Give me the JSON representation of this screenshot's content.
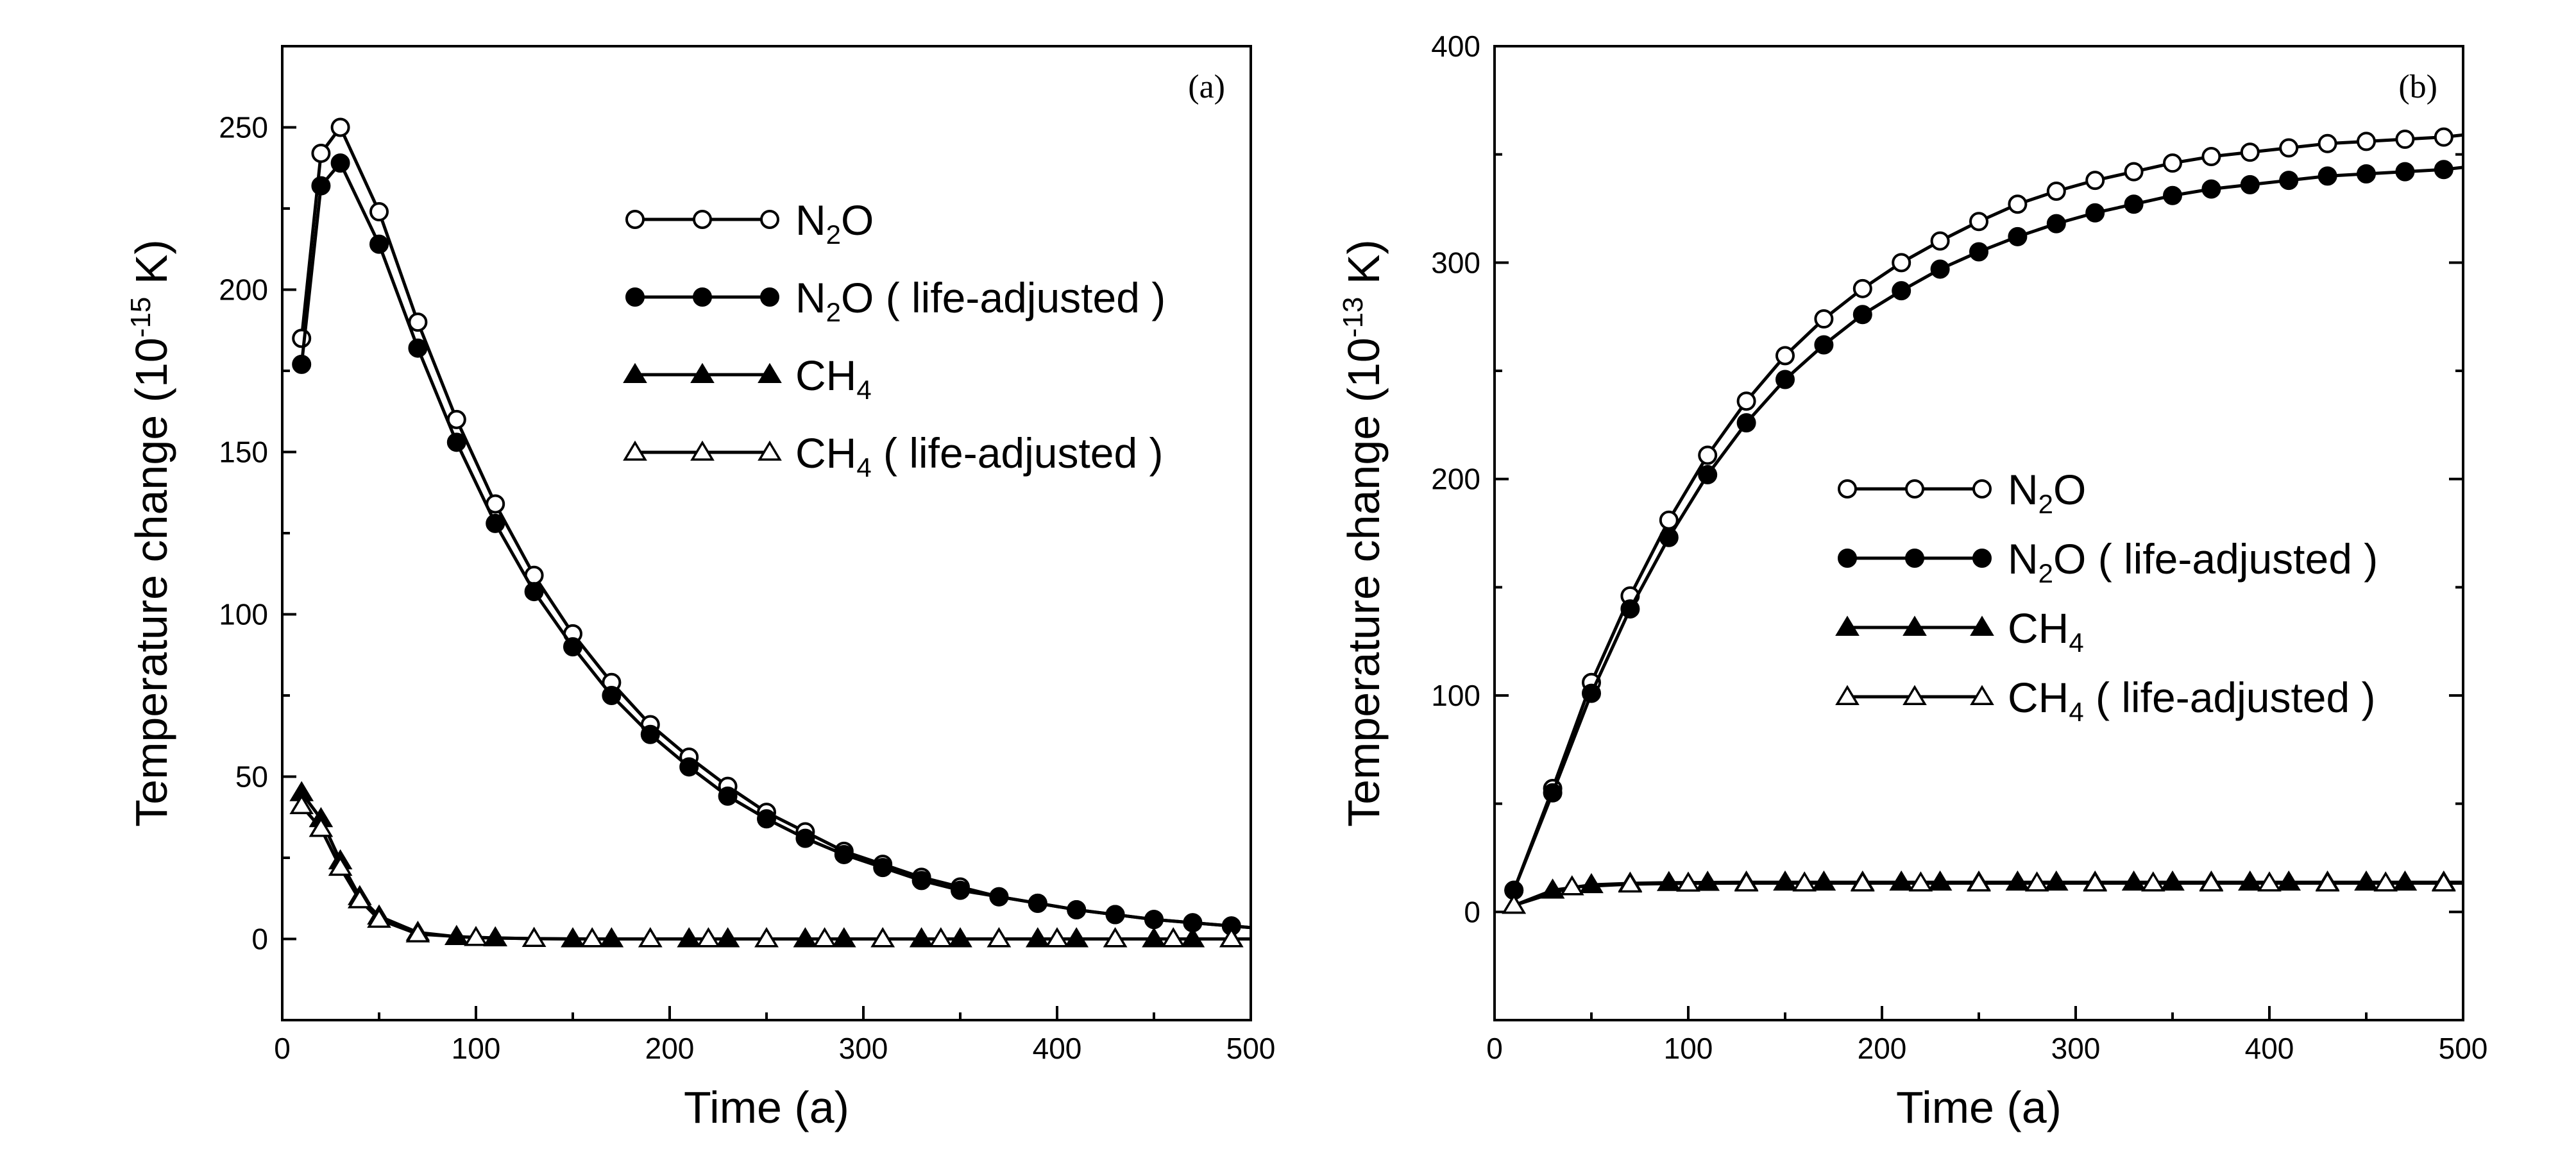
{
  "chart_data": [
    {
      "type": "line",
      "panel_label": "(a)",
      "xlabel": "Time (a)",
      "ylabel": "Temperature change (10",
      "ylabel_exp": "-15",
      "ylabel_unit": " K)",
      "xlim": [
        0,
        500
      ],
      "ylim": [
        -25,
        275
      ],
      "xticks": [
        0,
        100,
        200,
        300,
        400,
        500
      ],
      "yticks": [
        0,
        50,
        100,
        150,
        200,
        250
      ],
      "xticks_minor": [
        50,
        150,
        250,
        350,
        450
      ],
      "yticks_minor": [
        25,
        75,
        125,
        175,
        225
      ],
      "legend_position": "upper-center",
      "grid": false,
      "series": [
        {
          "legend_main": "N",
          "legend_sub": "2",
          "legend_rest": "O",
          "marker": "open-circle",
          "x": [
            10,
            20,
            30,
            50,
            70,
            90,
            110,
            130,
            150,
            170,
            190,
            210,
            230,
            250,
            270,
            290,
            310,
            330,
            350,
            370,
            390,
            410,
            430,
            450,
            470,
            490,
            500
          ],
          "y": [
            185,
            242,
            250,
            224,
            190,
            160,
            134,
            112,
            94,
            79,
            66,
            56,
            47,
            39,
            33,
            27,
            23,
            19,
            16,
            13,
            11,
            9,
            7.5,
            6,
            5,
            4,
            3.5
          ]
        },
        {
          "legend_main": "N",
          "legend_sub": "2",
          "legend_rest": "O ( life-adjusted )",
          "marker": "filled-circle",
          "x": [
            10,
            20,
            30,
            50,
            70,
            90,
            110,
            130,
            150,
            170,
            190,
            210,
            230,
            250,
            270,
            290,
            310,
            330,
            350,
            370,
            390,
            410,
            430,
            450,
            470,
            490,
            500
          ],
          "y": [
            177,
            232,
            239,
            214,
            182,
            153,
            128,
            107,
            90,
            75,
            63,
            53,
            44,
            37,
            31,
            26,
            22,
            18,
            15,
            13,
            11,
            9,
            7.5,
            6,
            5,
            4,
            3.5
          ]
        },
        {
          "legend_main": "CH",
          "legend_sub": "4",
          "legend_rest": "",
          "marker": "filled-triangle",
          "x": [
            10,
            20,
            30,
            40,
            50,
            70,
            90,
            110,
            130,
            150,
            170,
            190,
            210,
            230,
            250,
            270,
            290,
            310,
            330,
            350,
            370,
            390,
            410,
            430,
            450,
            470,
            490,
            500
          ],
          "y": [
            45,
            37,
            24,
            13,
            7,
            2,
            0.7,
            0.3,
            0.1,
            0,
            0,
            0,
            0,
            0,
            0,
            0,
            0,
            0,
            0,
            0,
            0,
            0,
            0,
            0,
            0,
            0,
            0,
            0
          ]
        },
        {
          "legend_main": "CH",
          "legend_sub": "4",
          "legend_rest": " ( life-adjusted )",
          "marker": "open-triangle",
          "x": [
            10,
            20,
            30,
            40,
            50,
            70,
            100,
            130,
            160,
            190,
            220,
            250,
            280,
            310,
            340,
            370,
            400,
            430,
            460,
            490,
            500
          ],
          "y": [
            41,
            34,
            22,
            12,
            6,
            1.5,
            0.4,
            0.1,
            0,
            0,
            0,
            0,
            0,
            0,
            0,
            0,
            0,
            0,
            0,
            0,
            0
          ]
        }
      ]
    },
    {
      "type": "line",
      "panel_label": "(b)",
      "xlabel": "Time (a)",
      "ylabel": "Temperature change (10",
      "ylabel_exp": "-13",
      "ylabel_unit": " K)",
      "xlim": [
        0,
        500
      ],
      "ylim": [
        -50,
        400
      ],
      "xticks": [
        0,
        100,
        200,
        300,
        400,
        500
      ],
      "yticks": [
        0,
        100,
        200,
        300,
        400
      ],
      "xticks_minor": [
        50,
        150,
        250,
        350,
        450
      ],
      "yticks_minor": [
        50,
        150,
        250,
        350
      ],
      "legend_position": "center",
      "grid": false,
      "series": [
        {
          "legend_main": "N",
          "legend_sub": "2",
          "legend_rest": "O",
          "marker": "open-circle",
          "x": [
            10,
            30,
            50,
            70,
            90,
            110,
            130,
            150,
            170,
            190,
            210,
            230,
            250,
            270,
            290,
            310,
            330,
            350,
            370,
            390,
            410,
            430,
            450,
            470,
            490,
            500
          ],
          "y": [
            10,
            57,
            106,
            146,
            181,
            211,
            236,
            257,
            274,
            288,
            300,
            310,
            319,
            327,
            333,
            338,
            342,
            346,
            349,
            351,
            353,
            355,
            356,
            357,
            358,
            359
          ]
        },
        {
          "legend_main": "N",
          "legend_sub": "2",
          "legend_rest": "O ( life-adjusted )",
          "marker": "filled-circle",
          "x": [
            10,
            30,
            50,
            70,
            90,
            110,
            130,
            150,
            170,
            190,
            210,
            230,
            250,
            270,
            290,
            310,
            330,
            350,
            370,
            390,
            410,
            430,
            450,
            470,
            490,
            500
          ],
          "y": [
            10,
            55,
            101,
            140,
            173,
            202,
            226,
            246,
            262,
            276,
            287,
            297,
            305,
            312,
            318,
            323,
            327,
            331,
            334,
            336,
            338,
            340,
            341,
            342,
            343,
            344
          ]
        },
        {
          "legend_main": "CH",
          "legend_sub": "4",
          "legend_rest": "",
          "marker": "filled-triangle",
          "x": [
            10,
            30,
            50,
            70,
            90,
            110,
            130,
            150,
            170,
            190,
            210,
            230,
            250,
            270,
            290,
            310,
            330,
            350,
            370,
            390,
            410,
            430,
            450,
            470,
            490,
            500
          ],
          "y": [
            3,
            10,
            12.5,
            13.2,
            13.5,
            13.6,
            13.7,
            13.7,
            13.7,
            13.7,
            13.7,
            13.7,
            13.7,
            13.7,
            13.7,
            13.7,
            13.7,
            13.7,
            13.7,
            13.7,
            13.7,
            13.7,
            13.7,
            13.7,
            13.7,
            13.7
          ]
        },
        {
          "legend_main": "CH",
          "legend_sub": "4",
          "legend_rest": " ( life-adjusted )",
          "marker": "open-triangle",
          "x": [
            10,
            40,
            70,
            100,
            130,
            160,
            190,
            220,
            250,
            280,
            310,
            340,
            370,
            400,
            430,
            460,
            490,
            500
          ],
          "y": [
            3,
            11.5,
            12.8,
            13.2,
            13.3,
            13.3,
            13.3,
            13.3,
            13.3,
            13.3,
            13.3,
            13.3,
            13.3,
            13.3,
            13.3,
            13.3,
            13.3,
            13.3
          ]
        }
      ]
    }
  ]
}
